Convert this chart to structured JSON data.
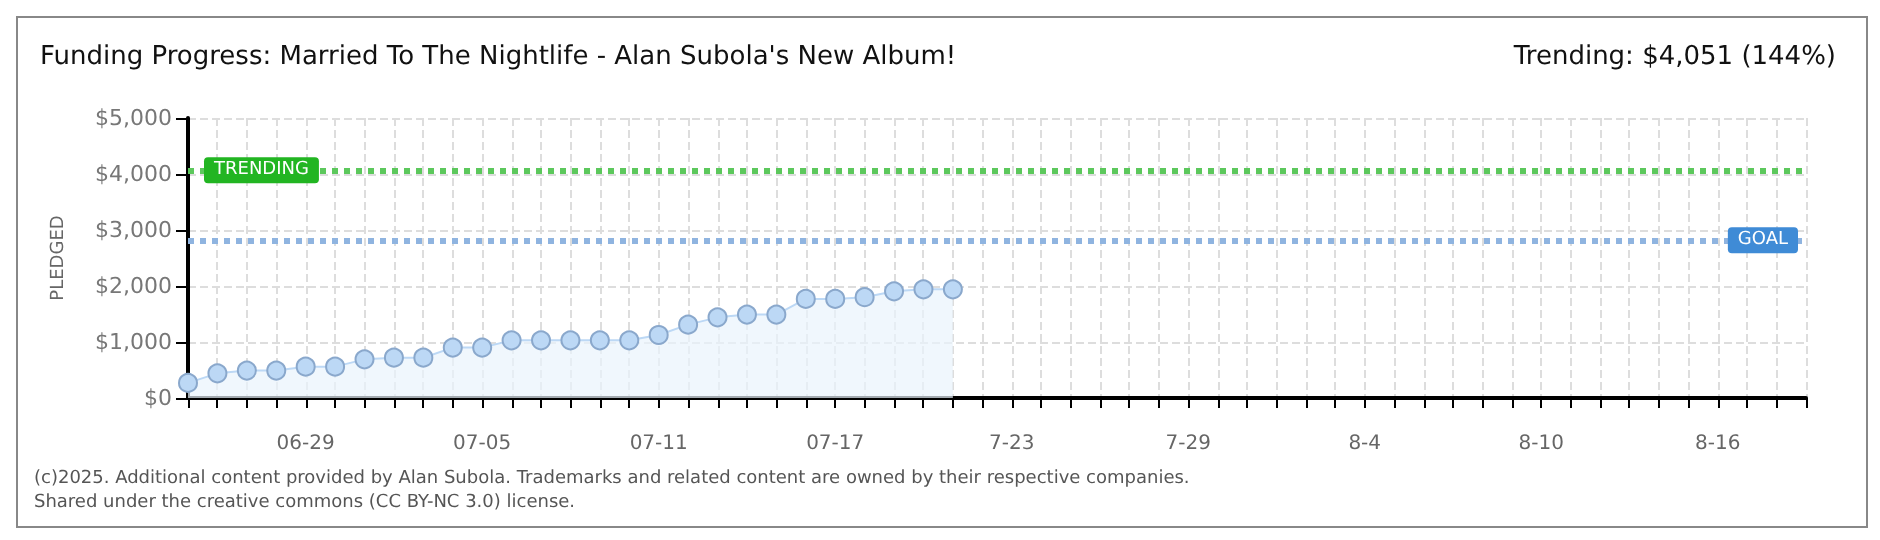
{
  "chart_data": {
    "type": "area",
    "title": "Funding Progress: Married To The Nightlife - Alan Subola's New Album!",
    "subtitle": "Trending: $4,051 (144%)",
    "ylabel": "PLEDGED",
    "x": [
      "2025-06-25",
      "2025-06-26",
      "2025-06-27",
      "2025-06-28",
      "2025-06-29",
      "2025-06-30",
      "2025-07-01",
      "2025-07-02",
      "2025-07-03",
      "2025-07-04",
      "2025-07-05",
      "2025-07-06",
      "2025-07-07",
      "2025-07-08",
      "2025-07-09",
      "2025-07-10",
      "2025-07-11",
      "2025-07-12",
      "2025-07-13",
      "2025-07-14",
      "2025-07-15",
      "2025-07-16",
      "2025-07-17",
      "2025-07-18",
      "2025-07-19",
      "2025-07-20",
      "2025-07-21"
    ],
    "series": [
      {
        "color": "#bcd8f5",
        "values": [
          270,
          440,
          490,
          490,
          560,
          560,
          690,
          720,
          720,
          900,
          900,
          1030,
          1030,
          1030,
          1030,
          1030,
          1125,
          1310,
          1440,
          1490,
          1490,
          1770,
          1770,
          1800,
          1905,
          1940,
          1940
        ]
      }
    ],
    "xlim": [
      "2025-06-25",
      "2025-08-19"
    ],
    "xticks": [
      {
        "value": "2025-06-29",
        "label": "06-29"
      },
      {
        "value": "2025-07-05",
        "label": "07-05"
      },
      {
        "value": "2025-07-11",
        "label": "07-11"
      },
      {
        "value": "2025-07-17",
        "label": "07-17"
      },
      {
        "value": "2025-07-23",
        "label": "7-23"
      },
      {
        "value": "2025-07-29",
        "label": "7-29"
      },
      {
        "value": "2025-08-04",
        "label": "8-4"
      },
      {
        "value": "2025-08-10",
        "label": "8-10"
      },
      {
        "value": "2025-08-16",
        "label": "8-16"
      }
    ],
    "ylim": [
      0,
      5000
    ],
    "yticks": [
      {
        "value": 0,
        "label": "$0"
      },
      {
        "value": 1000,
        "label": "$1,000"
      },
      {
        "value": 2000,
        "label": "$2,000"
      },
      {
        "value": 3000,
        "label": "$3,000"
      },
      {
        "value": 4000,
        "label": "$4,000"
      },
      {
        "value": 5000,
        "label": "$5,000"
      }
    ],
    "ref_lines": [
      {
        "axis": "y",
        "value": 4051,
        "label": "TRENDING",
        "color": "#5cc85c",
        "line_style": "dotted"
      },
      {
        "axis": "y",
        "value": 2800,
        "label": "GOAL",
        "color": "#8fb4e0",
        "line_style": "dotted"
      }
    ],
    "grid": true,
    "marker": "circle",
    "annotations": [
      "(c)2025. Additional content provided by Alan Subola. Trademarks and related content are owned by their respective companies.",
      "Shared under the creative commons (CC BY-NC 3.0) license."
    ]
  }
}
